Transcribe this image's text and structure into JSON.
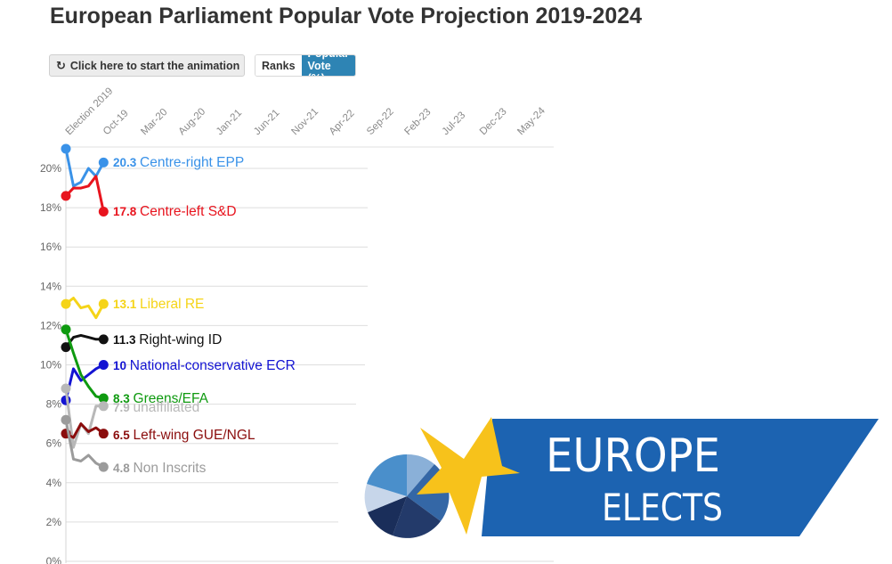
{
  "page": {
    "title": "European Parliament Popular Vote Projection 2019-2024",
    "animate_button": "Click here to start the animation",
    "animate_icon": "rotate-icon",
    "toggle": {
      "ranks": "Ranks",
      "popular_vote": "Popular Vote (%)",
      "active": "Popular Vote (%)"
    }
  },
  "logo": {
    "line1": "EUROPE",
    "line2": "ELECTS",
    "colors": {
      "banner": "#1c63b1",
      "star": "#f7c21b"
    }
  },
  "chart_data": {
    "type": "line",
    "x_ticks": [
      "Election 2019",
      "Oct-19",
      "Mar-20",
      "Aug-20",
      "Jan-21",
      "Jun-21",
      "Nov-21",
      "Apr-22",
      "Sep-22",
      "Feb-23",
      "Jul-23",
      "Dec-23",
      "May-24"
    ],
    "y_ticks": [
      "0%",
      "2%",
      "4%",
      "6%",
      "8%",
      "10%",
      "12%",
      "14%",
      "16%",
      "18%",
      "20%"
    ],
    "ylim": [
      0,
      21
    ],
    "grid": true,
    "series": [
      {
        "name": "Centre-right EPP",
        "label_value": "20.3",
        "color": "#3a92e8",
        "points": [
          [
            0,
            21.0
          ],
          [
            1,
            19.1
          ],
          [
            2,
            19.3
          ],
          [
            3,
            20.0
          ],
          [
            4,
            19.6
          ],
          [
            5,
            20.3
          ]
        ]
      },
      {
        "name": "Centre-left S&D",
        "label_value": "17.8",
        "color": "#e8141e",
        "points": [
          [
            0,
            18.6
          ],
          [
            1,
            19.0
          ],
          [
            2,
            19.0
          ],
          [
            3,
            19.1
          ],
          [
            4,
            19.6
          ],
          [
            5,
            17.8
          ]
        ]
      },
      {
        "name": "Liberal RE",
        "label_value": "13.1",
        "color": "#f5d418",
        "points": [
          [
            0,
            13.1
          ],
          [
            1,
            13.4
          ],
          [
            2,
            12.9
          ],
          [
            3,
            13.0
          ],
          [
            4,
            12.4
          ],
          [
            5,
            13.1
          ]
        ]
      },
      {
        "name": "Right-wing ID",
        "label_value": "11.3",
        "color": "#111111",
        "points": [
          [
            0,
            10.9
          ],
          [
            1,
            11.4
          ],
          [
            2,
            11.5
          ],
          [
            3,
            11.4
          ],
          [
            4,
            11.3
          ],
          [
            5,
            11.3
          ]
        ]
      },
      {
        "name": "National-conservative ECR",
        "label_value": "10",
        "color": "#1414d2",
        "points": [
          [
            0,
            8.2
          ],
          [
            1,
            9.8
          ],
          [
            2,
            9.2
          ],
          [
            3,
            9.5
          ],
          [
            4,
            9.8
          ],
          [
            5,
            10.0
          ]
        ]
      },
      {
        "name": "Greens/EFA",
        "label_value": "8.3",
        "color": "#0f9a10",
        "points": [
          [
            0,
            11.8
          ],
          [
            1,
            10.6
          ],
          [
            2,
            9.5
          ],
          [
            3,
            8.9
          ],
          [
            4,
            8.4
          ],
          [
            5,
            8.3
          ]
        ]
      },
      {
        "name": "unaffiliated",
        "label_value": "7.9",
        "color": "#b8b8b8",
        "points": [
          [
            0,
            8.8
          ],
          [
            1,
            5.8
          ],
          [
            2,
            7.0
          ],
          [
            3,
            6.5
          ],
          [
            4,
            7.9
          ],
          [
            5,
            7.9
          ]
        ]
      },
      {
        "name": "Left-wing GUE/NGL",
        "label_value": "6.5",
        "color": "#8b0d0d",
        "points": [
          [
            0,
            6.5
          ],
          [
            1,
            6.3
          ],
          [
            2,
            7.0
          ],
          [
            3,
            6.6
          ],
          [
            4,
            6.8
          ],
          [
            5,
            6.5
          ]
        ]
      },
      {
        "name": "Non Inscrits",
        "label_value": "4.8",
        "color": "#9b9b9b",
        "points": [
          [
            0,
            7.2
          ],
          [
            1,
            5.2
          ],
          [
            2,
            5.1
          ],
          [
            3,
            5.4
          ],
          [
            4,
            5.0
          ],
          [
            5,
            4.8
          ]
        ]
      }
    ]
  }
}
